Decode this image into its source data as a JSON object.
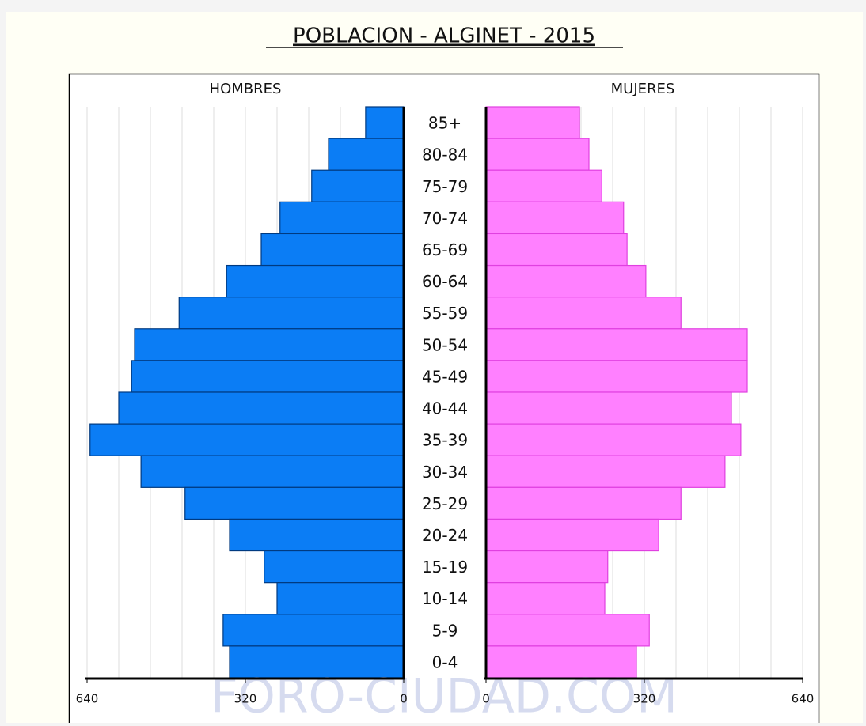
{
  "chart_data": {
    "type": "pyramid",
    "title": "POBLACION - ALGINET - 2015",
    "categories": [
      "85+",
      "80-84",
      "75-79",
      "70-74",
      "65-69",
      "60-64",
      "55-59",
      "50-54",
      "45-49",
      "40-44",
      "35-39",
      "30-34",
      "25-29",
      "20-24",
      "15-19",
      "10-14",
      "5-9",
      "0-4"
    ],
    "series": [
      {
        "name": "HOMBRES",
        "color": "#0b7df5",
        "values": [
          77,
          152,
          186,
          250,
          288,
          358,
          454,
          544,
          550,
          576,
          634,
          531,
          442,
          352,
          282,
          256,
          365,
          352
        ]
      },
      {
        "name": "MUJERES",
        "color": "#ff80ff",
        "values": [
          189,
          208,
          234,
          278,
          285,
          323,
          394,
          528,
          528,
          496,
          515,
          483,
          394,
          349,
          246,
          240,
          330,
          304
        ]
      }
    ],
    "xlim": [
      0,
      640
    ],
    "xticks": [
      0,
      320,
      640
    ],
    "grid_ticks": [
      64,
      128,
      192,
      256,
      320,
      384,
      448,
      512,
      576,
      640
    ],
    "grid": true,
    "watermark": "FORO-CIUDAD.COM"
  }
}
